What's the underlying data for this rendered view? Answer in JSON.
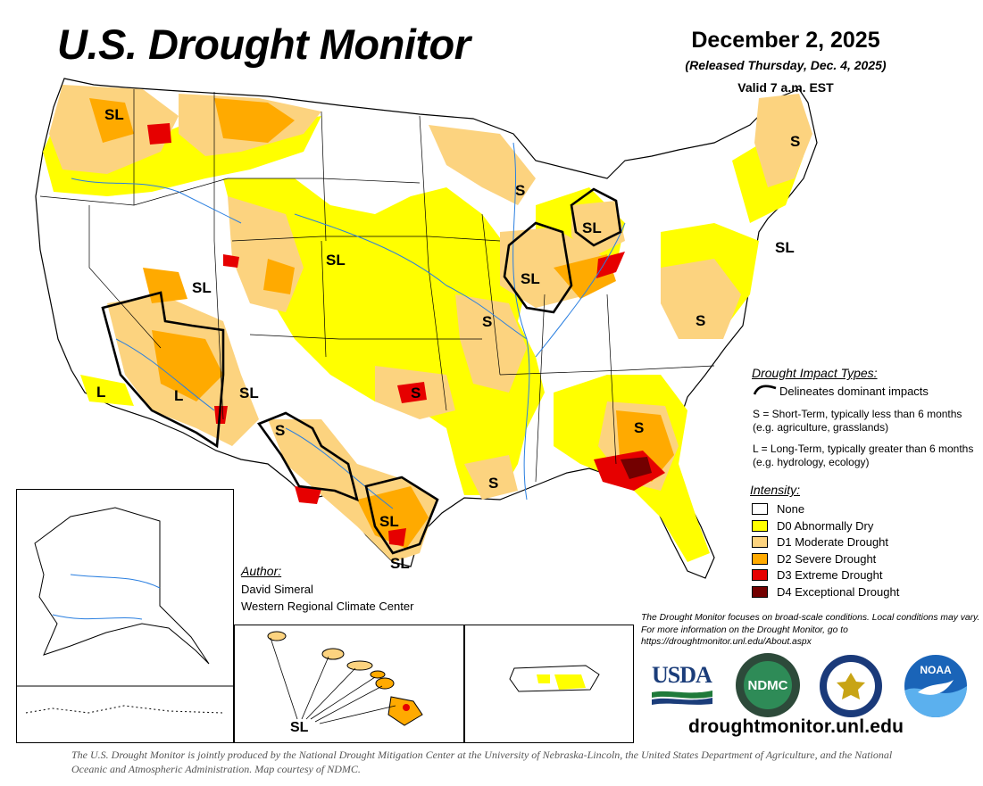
{
  "header": {
    "title": "U.S. Drought Monitor",
    "date": "December 2, 2025",
    "released": "(Released Thursday, Dec. 4, 2025)",
    "valid": "Valid 7 a.m. EST"
  },
  "map_labels": [
    "SL",
    "SL",
    "SL",
    "SL",
    "SL",
    "SL",
    "SL",
    "S",
    "S",
    "S",
    "S",
    "S",
    "S",
    "S",
    "L",
    "L",
    "S",
    "SL",
    "SL"
  ],
  "impact_legend": {
    "title": "Drought Impact Types:",
    "line_text": "Delineates dominant impacts",
    "short_term": "S = Short-Term, typically less than 6 months (e.g. agriculture, grasslands)",
    "long_term": "L = Long-Term, typically greater than 6 months (e.g. hydrology, ecology)"
  },
  "intensity_legend": {
    "title": "Intensity:",
    "items": [
      {
        "label": "None",
        "color": "#ffffff"
      },
      {
        "label": "D0 Abnormally Dry",
        "color": "#ffff00"
      },
      {
        "label": "D1 Moderate Drought",
        "color": "#fcd37f"
      },
      {
        "label": "D2 Severe Drought",
        "color": "#ffaa00"
      },
      {
        "label": "D3 Extreme Drought",
        "color": "#e60000"
      },
      {
        "label": "D4 Exceptional Drought",
        "color": "#730000"
      }
    ]
  },
  "author": {
    "title": "Author:",
    "name": "David Simeral",
    "org": "Western Regional Climate Center"
  },
  "note": "The Drought Monitor focuses on broad-scale conditions. Local conditions may vary. For more information on the Drought Monitor, go to https://droughtmonitor.unl.edu/About.aspx",
  "website": "droughtmonitor.unl.edu",
  "footer": "The U.S. Drought Monitor is jointly produced by the National Drought Mitigation Center at the University of Nebraska-Lincoln, the United States Department of Agriculture, and the National Oceanic and Atmospheric Administration. Map courtesy of NDMC.",
  "logos": {
    "usda": "USDA",
    "ndmc": "NDMC",
    "noaa": "NOAA"
  },
  "hawaii_label": "SL"
}
